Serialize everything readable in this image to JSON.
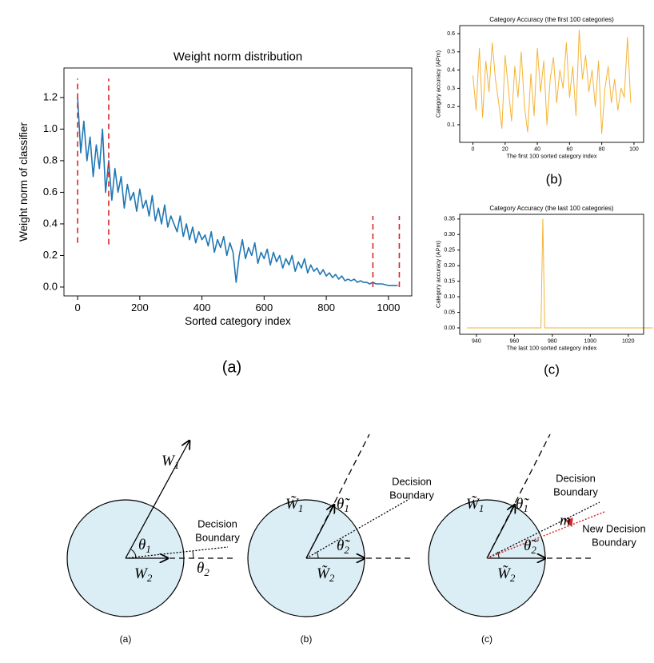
{
  "chart_data": [
    {
      "type": "line",
      "title": "Weight norm distribution",
      "x_label": "Sorted category index",
      "y_label": "Weight norm of classifier",
      "x": [
        0,
        10,
        20,
        30,
        40,
        50,
        60,
        70,
        80,
        90,
        100,
        110,
        120,
        130,
        140,
        150,
        160,
        170,
        180,
        190,
        200,
        210,
        220,
        230,
        240,
        250,
        260,
        270,
        280,
        290,
        300,
        310,
        320,
        330,
        340,
        350,
        360,
        370,
        380,
        390,
        400,
        410,
        420,
        430,
        440,
        450,
        460,
        470,
        480,
        490,
        500,
        510,
        520,
        530,
        540,
        550,
        560,
        570,
        580,
        590,
        600,
        610,
        620,
        630,
        640,
        650,
        660,
        670,
        680,
        690,
        700,
        710,
        720,
        730,
        740,
        750,
        760,
        770,
        780,
        790,
        800,
        810,
        820,
        830,
        840,
        850,
        860,
        870,
        880,
        890,
        900,
        910,
        920,
        930,
        940,
        950,
        960,
        970,
        980,
        990,
        1000,
        1010,
        1020,
        1030
      ],
      "values": [
        1.2,
        0.85,
        1.05,
        0.8,
        0.95,
        0.7,
        0.9,
        0.75,
        1.0,
        0.6,
        0.8,
        0.55,
        0.75,
        0.6,
        0.7,
        0.5,
        0.65,
        0.55,
        0.6,
        0.48,
        0.62,
        0.5,
        0.55,
        0.45,
        0.58,
        0.42,
        0.5,
        0.4,
        0.52,
        0.38,
        0.45,
        0.4,
        0.35,
        0.45,
        0.32,
        0.4,
        0.3,
        0.38,
        0.28,
        0.35,
        0.3,
        0.33,
        0.26,
        0.35,
        0.22,
        0.3,
        0.25,
        0.32,
        0.2,
        0.28,
        0.22,
        0.03,
        0.2,
        0.3,
        0.18,
        0.25,
        0.2,
        0.28,
        0.15,
        0.22,
        0.18,
        0.24,
        0.14,
        0.22,
        0.16,
        0.2,
        0.12,
        0.18,
        0.14,
        0.2,
        0.1,
        0.16,
        0.12,
        0.18,
        0.09,
        0.14,
        0.1,
        0.12,
        0.08,
        0.11,
        0.07,
        0.09,
        0.06,
        0.08,
        0.05,
        0.07,
        0.04,
        0.05,
        0.04,
        0.05,
        0.03,
        0.04,
        0.03,
        0.03,
        0.02,
        0.03,
        0.02,
        0.02,
        0.02,
        0.015,
        0.01,
        0.01,
        0.01,
        0.01
      ],
      "color": "#1f77b4",
      "xlim": [
        -44,
        1075
      ],
      "ylim": [
        -0.056,
        1.387
      ],
      "xticks": [
        0,
        200,
        400,
        600,
        800,
        1000
      ],
      "yticks": [
        {
          "value": 0,
          "label": "0.0"
        },
        0.2,
        0.4,
        0.6,
        0.8,
        {
          "value": 1,
          "label": "1.0"
        },
        1.2
      ],
      "vlines": [
        {
          "x": 0,
          "ymin": 0.28,
          "ymax": 1.32
        },
        {
          "x": 100,
          "ymin": 0.27,
          "ymax": 1.32
        },
        {
          "x": 950,
          "ymin": 0,
          "ymax": 0.45
        },
        {
          "x": 1035,
          "ymin": 0,
          "ymax": 0.45
        }
      ],
      "vline_color": "#d62728"
    },
    {
      "type": "line",
      "title": "Category Accuracy (the first 100 categories)",
      "x_label": "The first 100 sorted category index",
      "y_label": "Category accuracy (APm)",
      "x": [
        0,
        2,
        4,
        6,
        8,
        10,
        12,
        14,
        16,
        18,
        20,
        22,
        24,
        26,
        28,
        30,
        32,
        34,
        36,
        38,
        40,
        42,
        44,
        46,
        48,
        50,
        52,
        54,
        56,
        58,
        60,
        62,
        64,
        66,
        68,
        70,
        72,
        74,
        76,
        78,
        80,
        82,
        84,
        86,
        88,
        90,
        92,
        94,
        96,
        98
      ],
      "values": [
        0.37,
        0.18,
        0.52,
        0.14,
        0.45,
        0.28,
        0.55,
        0.35,
        0.22,
        0.08,
        0.48,
        0.3,
        0.12,
        0.42,
        0.25,
        0.5,
        0.2,
        0.06,
        0.38,
        0.15,
        0.52,
        0.28,
        0.45,
        0.1,
        0.35,
        0.47,
        0.22,
        0.4,
        0.3,
        0.55,
        0.25,
        0.42,
        0.15,
        0.62,
        0.35,
        0.48,
        0.28,
        0.4,
        0.2,
        0.45,
        0.05,
        0.3,
        0.42,
        0.22,
        0.35,
        0.18,
        0.3,
        0.25,
        0.58,
        0.22
      ],
      "color": "#f5b335",
      "xlim": [
        -8.2,
        106
      ],
      "ylim": [
        0.0035,
        0.644
      ],
      "xticks": [
        0,
        20,
        40,
        60,
        80,
        100
      ],
      "yticks": [
        0.1,
        0.2,
        0.3,
        0.4,
        0.5,
        0.6
      ]
    },
    {
      "type": "line",
      "title": "Category Accuracy (the last 100 categories)",
      "x_label": "The last 100 sorted category index",
      "y_label": "Category accuracy (APm)",
      "x": [
        935,
        974,
        975,
        976,
        1033
      ],
      "values": [
        0,
        0,
        0.35,
        0,
        0
      ],
      "color": "#f5b335",
      "xlim": [
        931.2,
        1028.1
      ],
      "ylim": [
        -0.0206,
        0.365
      ],
      "xticks": [
        940,
        960,
        980,
        1000,
        1020
      ],
      "yticks": [
        {
          "value": 0,
          "label": "0.00"
        },
        0.05,
        {
          "value": 0.1,
          "label": "0.10"
        },
        0.15,
        {
          "value": 0.2,
          "label": "0.20"
        },
        0.25,
        {
          "value": 0.3,
          "label": "0.30"
        },
        0.35
      ]
    }
  ],
  "panel_labels": [
    "(a)",
    "(b)",
    "(c)"
  ],
  "diagrams": [
    {
      "caption": "(a)",
      "w1": {
        "base": "W",
        "sub": "1"
      },
      "w2": {
        "base": "W",
        "sub": "2"
      },
      "theta1": {
        "base": "θ",
        "sub": "1"
      },
      "theta2": {
        "base": "θ",
        "sub": "2"
      },
      "boundary": [
        "Decision",
        "Boundary"
      ]
    },
    {
      "caption": "(b)",
      "w1": {
        "base": "W̃",
        "sub": "1"
      },
      "w2": {
        "base": "W̃",
        "sub": "2"
      },
      "theta1": {
        "base": "θ̃",
        "sub": "1"
      },
      "theta2": {
        "base": "θ̃",
        "sub": "2"
      },
      "boundary": [
        "Decision",
        "Boundary"
      ]
    },
    {
      "caption": "(c)",
      "w1": {
        "base": "W̃",
        "sub": "1"
      },
      "w2": {
        "base": "W̃",
        "sub": "2"
      },
      "theta1": {
        "base": "θ̃",
        "sub": "1"
      },
      "theta2": {
        "base": "θ̃",
        "sub": "2",
        "sup": "′"
      },
      "boundary": [
        "Decision",
        "Boundary"
      ],
      "margin": "m",
      "new_boundary": [
        "New Decision",
        "Boundary"
      ]
    }
  ]
}
